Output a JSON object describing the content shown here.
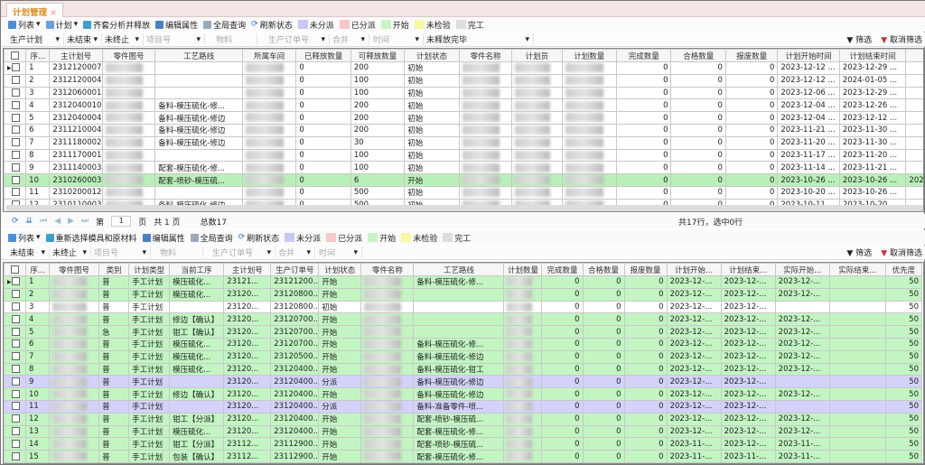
{
  "tab": {
    "title": "计划管理",
    "close": "×"
  },
  "colors": {
    "started": "#c2f5c2",
    "dispatched": "#d2d2fa",
    "unassigned": "#c8c8f8",
    "assigned": "#f8c8c8",
    "start": "#c8f5c8",
    "uninspected": "#f8f8a0",
    "done": "#dddddd",
    "tab_text": "#e08a1e"
  },
  "toolbar1": {
    "list": "列表",
    "plan": "计划",
    "analyze": "齐套分析并释放",
    "edit": "编辑属性",
    "query": "全局查询",
    "refresh": "刷新状态",
    "legend": [
      "未分派",
      "已分派",
      "开始",
      "未检验",
      "完工"
    ]
  },
  "filter1": {
    "items": [
      "生产计划",
      "未结束",
      "未终止"
    ],
    "placeholders": [
      "项目号",
      "物料",
      "生产订单号",
      "合并",
      "时间"
    ],
    "release": "未释放完毕",
    "filter": "筛选",
    "clear": "取消筛选"
  },
  "top_grid": {
    "columns": [
      "序...",
      "主计划号",
      "零件图号",
      "工艺路线",
      "所属车间",
      "已释放数量",
      "可释放数量",
      "计划状态",
      "零件名称",
      "计划员",
      "计划数量",
      "完成数量",
      "合格数量",
      "报废数量",
      "计划开始时间",
      "计划结束时间",
      "实际"
    ],
    "rows": [
      {
        "seq": "1",
        "plan": "2312120007",
        "route": "",
        "rel": "0",
        "relable": "200",
        "status": "初始",
        "done": "0",
        "ok": "0",
        "scrap": "0",
        "start": "2023-12-12 ...",
        "end": "2023-12-29 ...",
        "actual": ""
      },
      {
        "seq": "2",
        "plan": "2312120004",
        "route": "",
        "rel": "0",
        "relable": "100",
        "status": "初始",
        "done": "0",
        "ok": "0",
        "scrap": "0",
        "start": "2023-12-12 ...",
        "end": "2024-01-05 ...",
        "actual": ""
      },
      {
        "seq": "3",
        "plan": "2312060001",
        "route": "",
        "rel": "0",
        "relable": "100",
        "status": "初始",
        "done": "0",
        "ok": "0",
        "scrap": "0",
        "start": "2023-12-06 ...",
        "end": "2023-12-29 ...",
        "actual": ""
      },
      {
        "seq": "4",
        "plan": "2312040010",
        "route": "备料-模压硫化-修...",
        "rel": "0",
        "relable": "200",
        "status": "初始",
        "done": "0",
        "ok": "0",
        "scrap": "0",
        "start": "2023-12-04 ...",
        "end": "2023-12-26 ...",
        "actual": ""
      },
      {
        "seq": "5",
        "plan": "2312040004",
        "route": "备料-模压硫化-修边",
        "rel": "0",
        "relable": "200",
        "status": "初始",
        "done": "0",
        "ok": "0",
        "scrap": "0",
        "start": "2023-12-04 ...",
        "end": "2023-12-12 ...",
        "actual": ""
      },
      {
        "seq": "6",
        "plan": "2311210004",
        "route": "备料-模压硫化-修边",
        "rel": "0",
        "relable": "200",
        "status": "初始",
        "done": "0",
        "ok": "0",
        "scrap": "0",
        "start": "2023-11-21 ...",
        "end": "2023-11-30 ...",
        "actual": ""
      },
      {
        "seq": "7",
        "plan": "2311180002",
        "route": "备料-模压硫化-修边",
        "rel": "0",
        "relable": "30",
        "status": "初始",
        "done": "0",
        "ok": "0",
        "scrap": "0",
        "start": "2023-11-20 ...",
        "end": "2023-11-30 ...",
        "actual": ""
      },
      {
        "seq": "8",
        "plan": "2311170001",
        "route": "",
        "rel": "0",
        "relable": "100",
        "status": "初始",
        "done": "0",
        "ok": "0",
        "scrap": "0",
        "start": "2023-11-17 ...",
        "end": "2023-11-20 ...",
        "actual": ""
      },
      {
        "seq": "9",
        "plan": "2311140003",
        "route": "配套-模压硫化-修...",
        "rel": "0",
        "relable": "100",
        "status": "初始",
        "done": "0",
        "ok": "0",
        "scrap": "0",
        "start": "2023-11-14 ...",
        "end": "2023-11-21 ...",
        "actual": ""
      },
      {
        "seq": "10",
        "plan": "2310260003",
        "route": "配套-喷砂-模压硫...",
        "rel": "0",
        "relable": "6",
        "status": "开始",
        "done": "0",
        "ok": "0",
        "scrap": "0",
        "start": "2023-10-26 ...",
        "end": "2023-10-26 ...",
        "actual": "2023-",
        "hl": "curtop"
      },
      {
        "seq": "11",
        "plan": "2310200012",
        "route": "",
        "rel": "0",
        "relable": "500",
        "status": "初始",
        "done": "0",
        "ok": "0",
        "scrap": "0",
        "start": "2023-10-20 ...",
        "end": "2023-10-26 ...",
        "actual": ""
      },
      {
        "seq": "12",
        "plan": "2310110003",
        "route": "备料-模压硫化-修边",
        "rel": "0",
        "relable": "500",
        "status": "初始",
        "done": "0",
        "ok": "0",
        "scrap": "0",
        "start": "2023-10-11 ...",
        "end": "2023-10-20 ...",
        "actual": ""
      }
    ]
  },
  "pager": {
    "page_label": "第",
    "page": "1",
    "page_suffix": "页",
    "total_pages": "共 1 页",
    "total": "总数17",
    "summary": "共17行，选中0行"
  },
  "toolbar2": {
    "list": "列表",
    "reselect": "重新选择模具和原材料",
    "edit": "编辑属性",
    "query": "全局查询",
    "refresh": "刷新状态",
    "legend": [
      "未分派",
      "已分派",
      "开始",
      "未检验",
      "完工"
    ]
  },
  "filter2": {
    "items": [
      "未结束",
      "未终止"
    ],
    "placeholders": [
      "项目号",
      "物料",
      "生产订单号",
      "合并",
      "时间"
    ],
    "filter": "筛选",
    "clear": "取消筛选"
  },
  "bottom_grid": {
    "columns": [
      "序...",
      "零件图号",
      "类别",
      "计划类型",
      "当前工序",
      "主计划号",
      "生产订单号",
      "计划状态",
      "零件名称",
      "工艺路线",
      "计划数量",
      "完成数量",
      "合格数量",
      "报废数量",
      "计划开始...",
      "计划结束...",
      "实际开始...",
      "实际结束...",
      "优先度"
    ],
    "rows": [
      {
        "seq": "1",
        "cat": "普",
        "type": "手工计划",
        "op": "模压硫化...",
        "plan": "23121...",
        "order": "23121200...",
        "status": "开始",
        "route": "备料-模压硫化-修...",
        "done": "0",
        "ok": "0",
        "scrap": "0",
        "ps": "2023-12-...",
        "pe": "2023-12-...",
        "as": "2023-12-...",
        "ae": "",
        "pri": "50",
        "hl": "green"
      },
      {
        "seq": "2",
        "cat": "普",
        "type": "手工计划",
        "op": "模压硫化...",
        "plan": "23120...",
        "order": "23120800...",
        "status": "开始",
        "route": "",
        "done": "0",
        "ok": "0",
        "scrap": "0",
        "ps": "2023-12-...",
        "pe": "2023-12-...",
        "as": "2023-12-...",
        "ae": "",
        "pri": "50",
        "hl": "green"
      },
      {
        "seq": "3",
        "cat": "普",
        "type": "手工计划",
        "op": "",
        "plan": "23120...",
        "order": "23120800...",
        "status": "初始",
        "route": "",
        "done": "0",
        "ok": "0",
        "scrap": "0",
        "ps": "2023-12-...",
        "pe": "2023-12-...",
        "as": "",
        "ae": "",
        "pri": "50",
        "hl": ""
      },
      {
        "seq": "4",
        "cat": "普",
        "type": "手工计划",
        "op": "修边【确认】",
        "plan": "23120...",
        "order": "23120700...",
        "status": "开始",
        "route": "",
        "done": "0",
        "ok": "0",
        "scrap": "0",
        "ps": "2023-12-...",
        "pe": "2023-12-...",
        "as": "2023-12-...",
        "ae": "",
        "pri": "50",
        "hl": "green"
      },
      {
        "seq": "5",
        "cat": "急",
        "type": "手工计划",
        "op": "钳工【确认】",
        "plan": "23120...",
        "order": "23120700...",
        "status": "开始",
        "route": "",
        "done": "0",
        "ok": "0",
        "scrap": "0",
        "ps": "2023-12-...",
        "pe": "2023-12-...",
        "as": "2023-12-...",
        "ae": "",
        "pri": "50",
        "hl": "green"
      },
      {
        "seq": "6",
        "cat": "普",
        "type": "手工计划",
        "op": "模压硫化...",
        "plan": "23120...",
        "order": "23120700...",
        "status": "开始",
        "route": "备料-模压硫化-修...",
        "done": "0",
        "ok": "0",
        "scrap": "0",
        "ps": "2023-12-...",
        "pe": "2023-12-...",
        "as": "2023-12-...",
        "ae": "",
        "pri": "50",
        "hl": "green"
      },
      {
        "seq": "7",
        "cat": "普",
        "type": "手工计划",
        "op": "模压硫化...",
        "plan": "23120...",
        "order": "23120500...",
        "status": "开始",
        "route": "备料-模压硫化-修边",
        "done": "0",
        "ok": "0",
        "scrap": "0",
        "ps": "2023-12-...",
        "pe": "2023-12-...",
        "as": "2023-12-...",
        "ae": "",
        "pri": "50",
        "hl": "green"
      },
      {
        "seq": "8",
        "cat": "普",
        "type": "手工计划",
        "op": "模压硫化...",
        "plan": "23120...",
        "order": "23120400...",
        "status": "开始",
        "route": "备料-模压硫化-钳工",
        "done": "0",
        "ok": "0",
        "scrap": "0",
        "ps": "2023-12-...",
        "pe": "2023-12-...",
        "as": "2023-12-...",
        "ae": "",
        "pri": "50",
        "hl": "green"
      },
      {
        "seq": "9",
        "cat": "普",
        "type": "手工计划",
        "op": "",
        "plan": "23120...",
        "order": "23120400...",
        "status": "分派",
        "route": "备料-模压硫化-修边",
        "done": "0",
        "ok": "0",
        "scrap": "0",
        "ps": "2023-12-...",
        "pe": "2023-12-...",
        "as": "",
        "ae": "",
        "pri": "50",
        "hl": "purple"
      },
      {
        "seq": "10",
        "cat": "普",
        "type": "手工计划",
        "op": "修边【确认】",
        "plan": "23120...",
        "order": "23120400...",
        "status": "开始",
        "route": "备料-模压硫化-修边",
        "done": "0",
        "ok": "0",
        "scrap": "0",
        "ps": "2023-12-...",
        "pe": "2023-12-...",
        "as": "2023-12-...",
        "ae": "",
        "pri": "50",
        "hl": "green"
      },
      {
        "seq": "11",
        "cat": "普",
        "type": "手工计划",
        "op": "",
        "plan": "23120...",
        "order": "23120400...",
        "status": "分派",
        "route": "备料-准备零件-喷...",
        "done": "0",
        "ok": "0",
        "scrap": "0",
        "ps": "2023-12-...",
        "pe": "2023-12-...",
        "as": "",
        "ae": "",
        "pri": "50",
        "hl": "purple"
      },
      {
        "seq": "12",
        "cat": "普",
        "type": "手工计划",
        "op": "钳工【分派】",
        "plan": "23120...",
        "order": "23120400...",
        "status": "开始",
        "route": "配套-喷砂-模压硫...",
        "done": "0",
        "ok": "0",
        "scrap": "0",
        "ps": "2023-12-...",
        "pe": "2023-12-...",
        "as": "2023-12-...",
        "ae": "",
        "pri": "50",
        "hl": "green"
      },
      {
        "seq": "13",
        "cat": "普",
        "type": "手工计划",
        "op": "模压硫化...",
        "plan": "23120...",
        "order": "23120400...",
        "status": "开始",
        "route": "配套-模压硫化-修...",
        "done": "0",
        "ok": "0",
        "scrap": "0",
        "ps": "2023-12-...",
        "pe": "2023-12-...",
        "as": "2023-12-...",
        "ae": "",
        "pri": "50",
        "hl": "green"
      },
      {
        "seq": "14",
        "cat": "普",
        "type": "手工计划",
        "op": "钳工【分派】",
        "plan": "23112...",
        "order": "23112900...",
        "status": "开始",
        "route": "配套-喷砂-模压硫...",
        "done": "0",
        "ok": "0",
        "scrap": "0",
        "ps": "2023-11-...",
        "pe": "2023-12-...",
        "as": "2023-11-...",
        "ae": "",
        "pri": "50",
        "hl": "green"
      },
      {
        "seq": "15",
        "cat": "普",
        "type": "手工计划",
        "op": "包装【确认】",
        "plan": "23112...",
        "order": "23112900...",
        "status": "开始",
        "route": "配套-模压硫化-修...",
        "done": "0",
        "ok": "0",
        "scrap": "0",
        "ps": "2023-11-...",
        "pe": "2023-11-...",
        "as": "2023-11-...",
        "ae": "",
        "pri": "50",
        "hl": "green"
      }
    ]
  }
}
